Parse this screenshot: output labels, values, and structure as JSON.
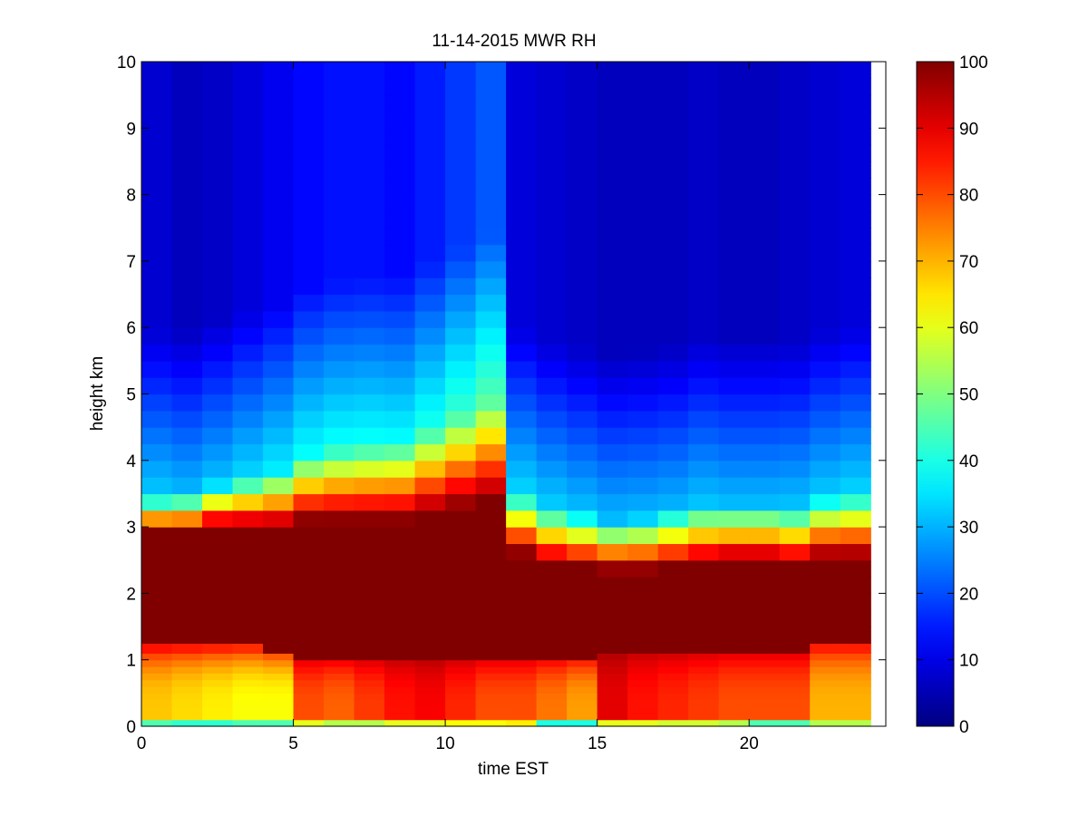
{
  "figure": {
    "background": "#ffffff",
    "axes_color": "#000000"
  },
  "chart_data": {
    "type": "heatmap",
    "title": "11-14-2015 MWR RH",
    "xlabel": "time EST",
    "ylabel": "height km",
    "xlim": [
      0,
      24.5
    ],
    "ylim": [
      0,
      10
    ],
    "xticks": [
      0,
      5,
      10,
      15,
      20
    ],
    "xtick_labels": [
      "0",
      "5",
      "10",
      "15",
      "20"
    ],
    "yticks": [
      0,
      1,
      2,
      3,
      4,
      5,
      6,
      7,
      8,
      9,
      10
    ],
    "ytick_labels": [
      "0",
      "1",
      "2",
      "3",
      "4",
      "5",
      "6",
      "7",
      "8",
      "9",
      "10"
    ],
    "colormap": "jet",
    "clim": [
      0,
      100
    ],
    "colorbar_ticks": [
      0,
      10,
      20,
      30,
      40,
      50,
      60,
      70,
      80,
      90,
      100
    ],
    "colorbar_tick_labels": [
      "0",
      "10",
      "20",
      "30",
      "40",
      "50",
      "60",
      "70",
      "80",
      "90",
      "100"
    ],
    "grid": false,
    "legend": "colorbar right",
    "time_step_hours": 1,
    "times": [
      0,
      1,
      2,
      3,
      4,
      5,
      6,
      7,
      8,
      9,
      10,
      11,
      12,
      13,
      14,
      15,
      16,
      17,
      18,
      19,
      20,
      21,
      22,
      23
    ],
    "height_levels_km": [
      0,
      0.1,
      0.2,
      0.3,
      0.4,
      0.5,
      0.6,
      0.7,
      0.8,
      0.9,
      1.0,
      1.1,
      1.25,
      1.5,
      1.75,
      2.0,
      2.25,
      2.5,
      2.75,
      3.0,
      3.25,
      3.5,
      3.75,
      4.0,
      4.25,
      4.5,
      4.75,
      5.0,
      5.25,
      5.5,
      5.75,
      6.0,
      6.25,
      6.5,
      6.75,
      7.0,
      7.25,
      7.5,
      7.75,
      8.0,
      8.25,
      8.5,
      8.75,
      9.0,
      9.25,
      9.5,
      9.75
    ],
    "profile_params": {
      "moist_top_km": [
        2.9,
        2.9,
        3.0,
        3.0,
        3.0,
        3.1,
        3.1,
        3.1,
        3.1,
        3.2,
        3.3,
        3.4,
        2.6,
        2.45,
        2.4,
        2.35,
        2.35,
        2.4,
        2.45,
        2.5,
        2.5,
        2.45,
        2.55,
        2.55
      ],
      "trans_width_km": [
        0.55,
        0.6,
        0.65,
        0.75,
        0.85,
        1.0,
        1.1,
        1.15,
        1.2,
        1.3,
        1.4,
        1.5,
        0.9,
        0.85,
        0.8,
        0.75,
        0.8,
        0.85,
        0.9,
        0.85,
        0.85,
        0.85,
        0.9,
        0.95
      ],
      "upper_rh": [
        8,
        6,
        7,
        9,
        11,
        13,
        14,
        14,
        13,
        15,
        18,
        21,
        9,
        8,
        7,
        6,
        6,
        6,
        7,
        6,
        6,
        7,
        8,
        9
      ],
      "moist_bottom_km": [
        1.2,
        1.2,
        1.2,
        1.2,
        1.15,
        1.05,
        1.05,
        1.05,
        1.05,
        1.05,
        1.05,
        1.05,
        1.05,
        1.05,
        1.05,
        1.15,
        1.15,
        1.15,
        1.15,
        1.15,
        1.15,
        1.15,
        1.25,
        1.25
      ],
      "pbl_rh": [
        68,
        66,
        64,
        62,
        62,
        80,
        78,
        82,
        86,
        88,
        84,
        80,
        80,
        76,
        72,
        90,
        86,
        84,
        82,
        80,
        80,
        80,
        70,
        70
      ],
      "surface_rh": [
        45,
        42,
        42,
        45,
        45,
        60,
        55,
        55,
        60,
        60,
        62,
        62,
        64,
        40,
        40,
        60,
        60,
        58,
        58,
        55,
        45,
        45,
        55,
        55
      ]
    }
  }
}
